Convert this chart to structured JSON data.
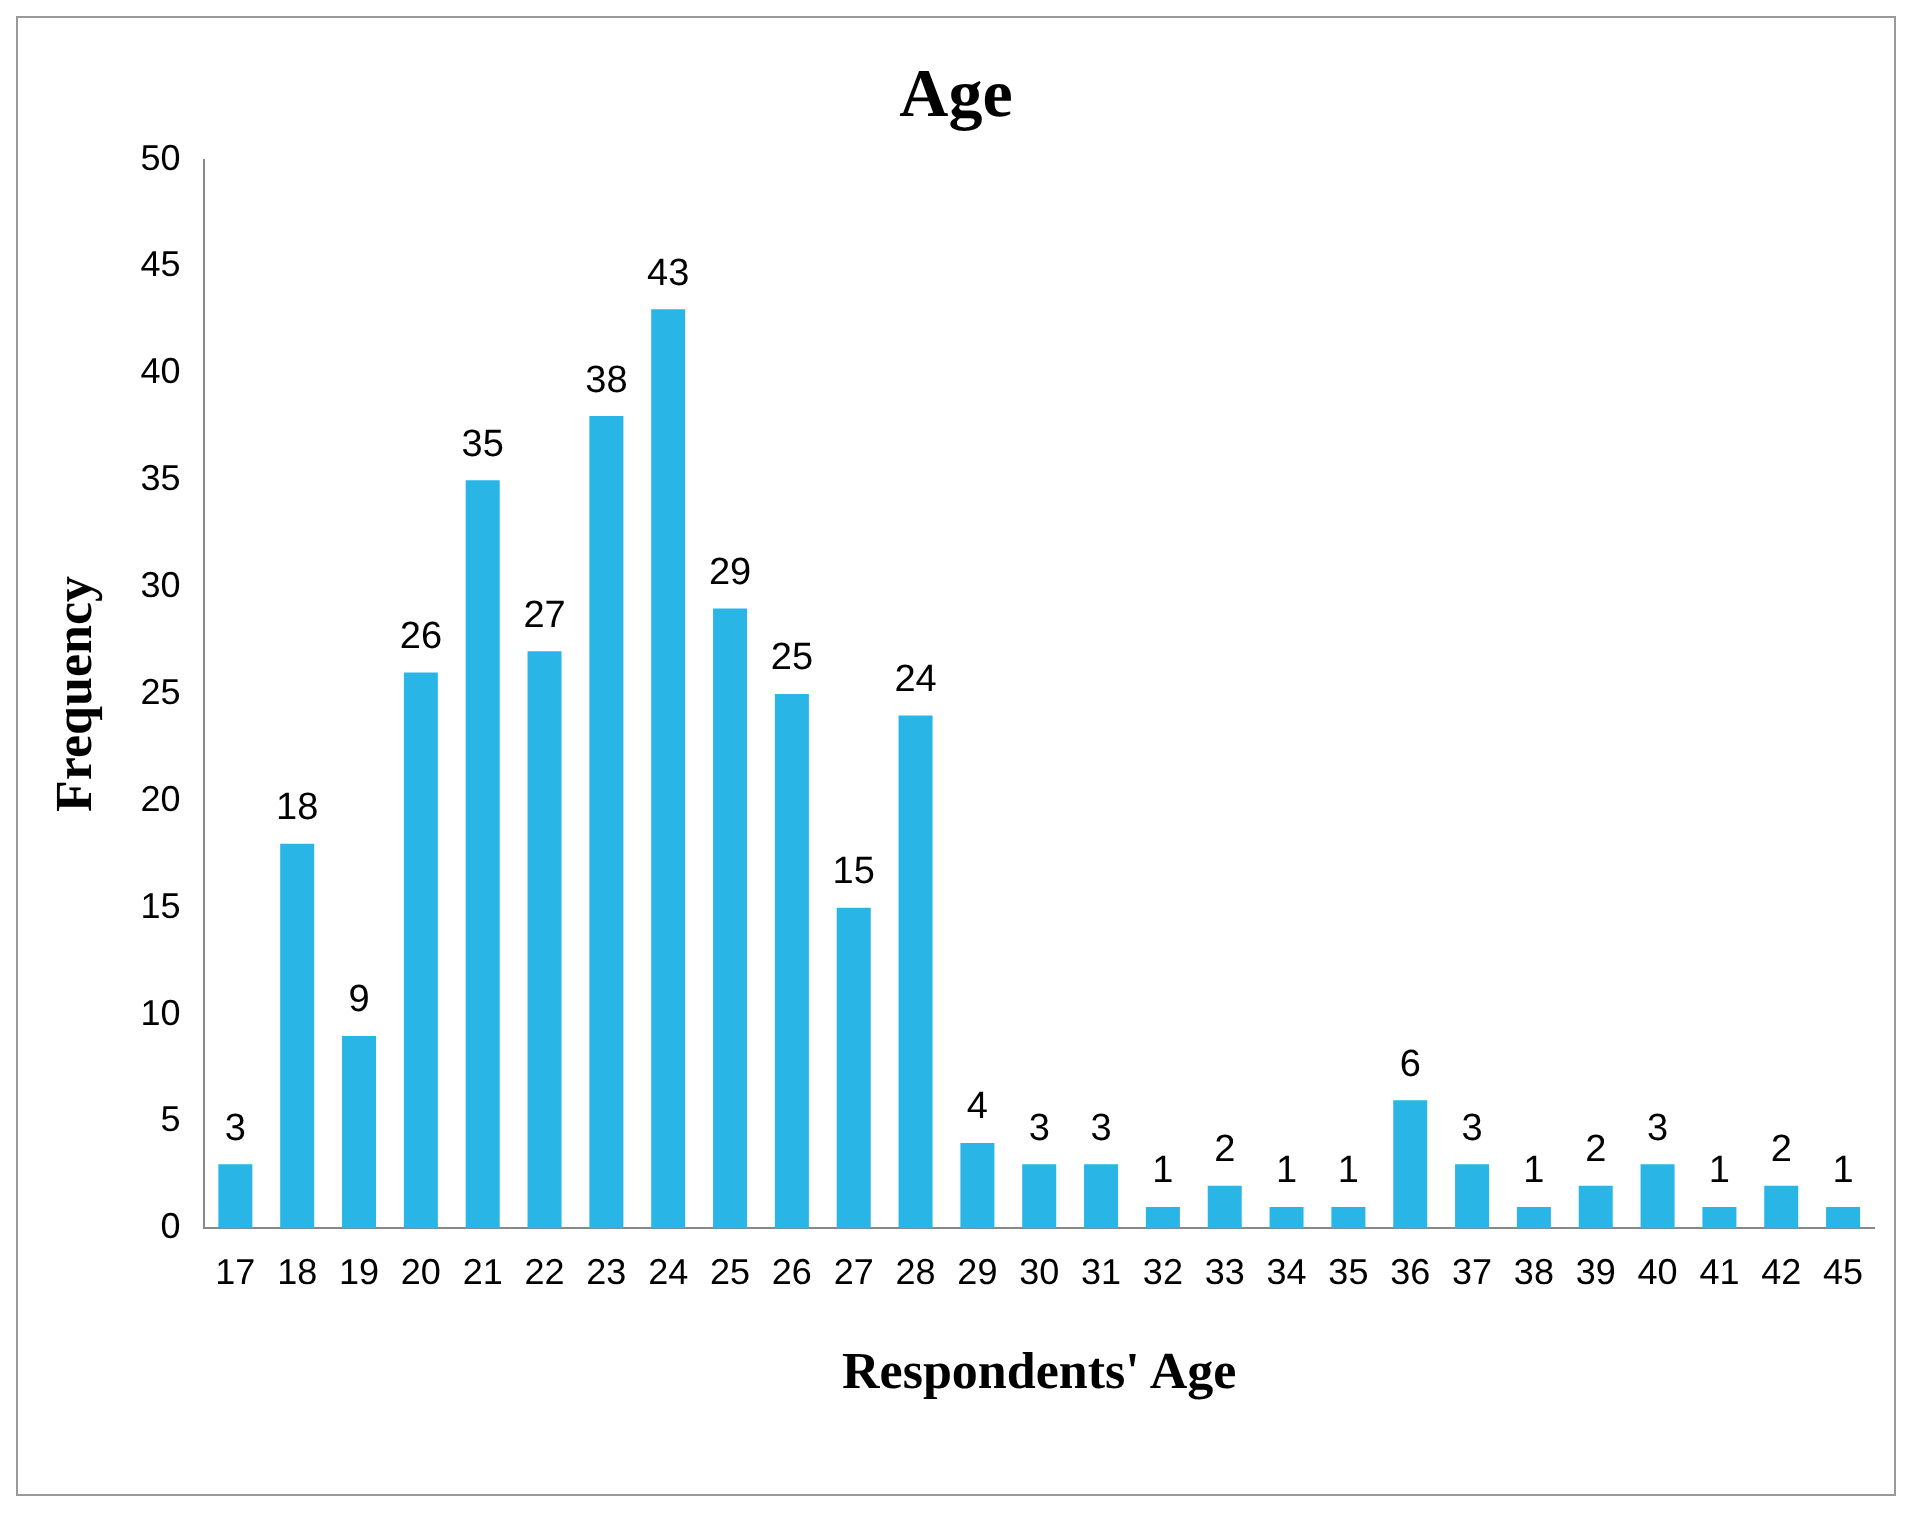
{
  "chart_data": {
    "type": "bar",
    "title": "Age",
    "xlabel": "Respondents' Age",
    "ylabel": "Frequency",
    "categories": [
      "17",
      "18",
      "19",
      "20",
      "21",
      "22",
      "23",
      "24",
      "25",
      "26",
      "27",
      "28",
      "29",
      "30",
      "31",
      "32",
      "33",
      "34",
      "35",
      "36",
      "37",
      "38",
      "39",
      "40",
      "41",
      "42",
      "45"
    ],
    "values": [
      3,
      18,
      9,
      26,
      35,
      27,
      38,
      43,
      29,
      25,
      15,
      24,
      4,
      3,
      3,
      1,
      2,
      1,
      1,
      6,
      3,
      1,
      2,
      3,
      1,
      2,
      1
    ],
    "color": "#29b6e6",
    "ylim": [
      0,
      50
    ],
    "yticks": [
      0,
      5,
      10,
      15,
      20,
      25,
      30,
      35,
      40,
      45,
      50
    ],
    "grid": false,
    "legend": false,
    "data_labels": true
  }
}
